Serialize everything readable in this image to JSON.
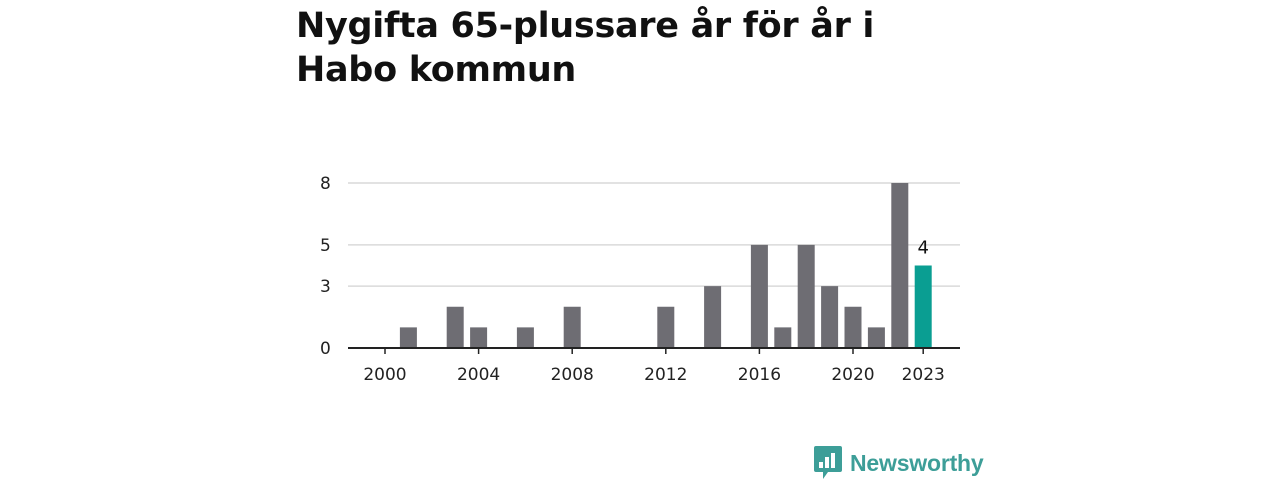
{
  "title": "Nygifta 65-plussare år för år i Habo kommun",
  "brand": {
    "name": "Newsworthy",
    "color": "#3d9e98"
  },
  "colors": {
    "bar": "#6e6d73",
    "highlight": "#0a9e92",
    "grid": "#d9d9d9",
    "axis": "#222222"
  },
  "chart_data": {
    "type": "bar",
    "title": "Nygifta 65-plussare år för år i Habo kommun",
    "xlabel": "",
    "ylabel": "",
    "categories": [
      "2000",
      "2001",
      "2002",
      "2003",
      "2004",
      "2005",
      "2006",
      "2007",
      "2008",
      "2009",
      "2010",
      "2011",
      "2012",
      "2013",
      "2014",
      "2015",
      "2016",
      "2017",
      "2018",
      "2019",
      "2020",
      "2021",
      "2022",
      "2023"
    ],
    "values": [
      0,
      1,
      0,
      2,
      1,
      0,
      1,
      0,
      2,
      0,
      0,
      0,
      2,
      0,
      3,
      0,
      5,
      1,
      5,
      3,
      2,
      1,
      8,
      4
    ],
    "highlight_index": 23,
    "highlight_label": "4",
    "ylim": [
      0,
      8
    ],
    "yticks": [
      0,
      3,
      5,
      8
    ],
    "xtick_labels": [
      "2000",
      "2004",
      "2008",
      "2012",
      "2016",
      "2020",
      "2023"
    ],
    "grid": true,
    "legend": "none"
  }
}
